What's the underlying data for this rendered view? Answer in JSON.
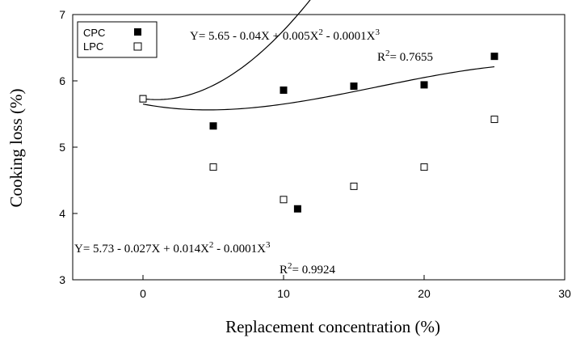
{
  "chart_data": {
    "type": "scatter",
    "title": "",
    "xlabel": "Replacement concentration (%)",
    "ylabel": "Cooking loss (%)",
    "xlim": [
      -5,
      30
    ],
    "ylim": [
      3,
      7
    ],
    "xticks": [
      0,
      10,
      20,
      30
    ],
    "yticks": [
      3,
      4,
      5,
      6,
      7
    ],
    "grid": false,
    "legend_position": "top-left",
    "series": [
      {
        "name": "CPC",
        "marker": "filled-square",
        "color": "#000000",
        "points": [
          [
            0,
            5.73
          ],
          [
            5,
            5.32
          ],
          [
            10,
            5.86
          ],
          [
            11,
            4.07
          ],
          [
            15,
            5.92
          ],
          [
            20,
            5.94
          ],
          [
            25,
            6.37
          ]
        ],
        "fit": {
          "intercept": 5.65,
          "b1": -0.04,
          "b2": 0.005,
          "b3": -0.0001
        }
      },
      {
        "name": "LPC",
        "marker": "open-square",
        "color": "#000000",
        "points": [
          [
            0,
            5.73
          ],
          [
            5,
            4.7
          ],
          [
            10,
            4.21
          ],
          [
            15,
            4.41
          ],
          [
            20,
            4.7
          ],
          [
            25,
            5.42
          ]
        ],
        "fit": {
          "intercept": 5.73,
          "b1": -0.027,
          "b2": 0.014,
          "b3": -0.0001
        }
      }
    ],
    "annotations": {
      "cpc_equation": {
        "a": "Y= 5.65 - 0.04X + 0.005X",
        "b": " - 0.0001X",
        "r2_value": "= 0.7655"
      },
      "lpc_equation": {
        "a": "Y= 5.73 - 0.027X + 0.014X",
        "b": " - 0.0001X",
        "r2_value": "= 0.9924"
      },
      "r2_label": "R",
      "sq": "2",
      "cube": "3"
    }
  }
}
